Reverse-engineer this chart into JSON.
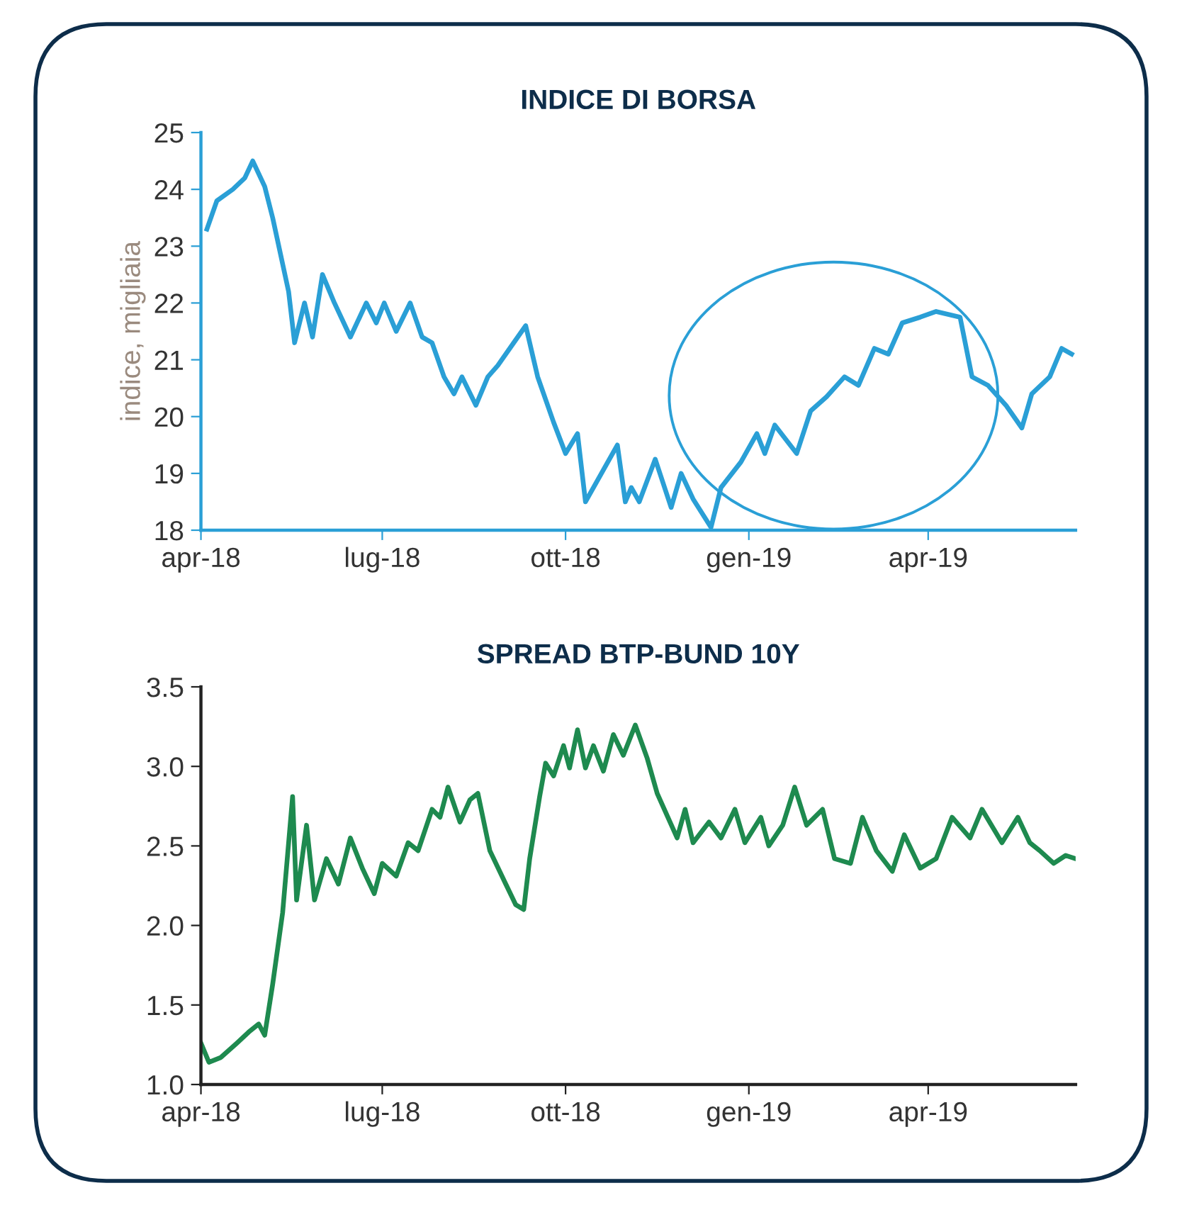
{
  "chart_data": [
    {
      "type": "line",
      "title": "INDICE DI BORSA",
      "ylabel": "indice, migliaia",
      "x": [
        "2018-04-04",
        "2018-04-09",
        "2018-04-17",
        "2018-04-23",
        "2018-04-27",
        "2018-05-03",
        "2018-05-07",
        "2018-05-15",
        "2018-05-18",
        "2018-05-23",
        "2018-05-27",
        "2018-06-01",
        "2018-06-07",
        "2018-06-15",
        "2018-06-23",
        "2018-06-28",
        "2018-07-02",
        "2018-07-08",
        "2018-07-15",
        "2018-07-21",
        "2018-07-26",
        "2018-08-01",
        "2018-08-06",
        "2018-08-10",
        "2018-08-17",
        "2018-08-23",
        "2018-08-28",
        "2018-09-05",
        "2018-09-11",
        "2018-09-17",
        "2018-09-25",
        "2018-10-01",
        "2018-10-07",
        "2018-10-11",
        "2018-10-19",
        "2018-10-27",
        "2018-10-31",
        "2018-11-03",
        "2018-11-07",
        "2018-11-15",
        "2018-11-23",
        "2018-11-28",
        "2018-12-04",
        "2018-12-13",
        "2018-12-18",
        "2018-12-28",
        "2019-01-05",
        "2019-01-09",
        "2019-01-14",
        "2019-01-25",
        "2019-02-01",
        "2019-02-09",
        "2019-02-18",
        "2019-02-25",
        "2019-03-05",
        "2019-03-12",
        "2019-03-19",
        "2019-03-28",
        "2019-04-05",
        "2019-04-17",
        "2019-04-23",
        "2019-05-01",
        "2019-05-10",
        "2019-05-18",
        "2019-05-23",
        "2019-06-01",
        "2019-06-07",
        "2019-06-12"
      ],
      "series": [
        {
          "color": "#2a9fd6",
          "values": [
            23.3,
            23.8,
            24.0,
            24.2,
            24.5,
            24.05,
            23.5,
            22.2,
            21.3,
            22.0,
            21.4,
            22.5,
            22.0,
            21.4,
            22.0,
            21.65,
            22.0,
            21.5,
            22.0,
            21.4,
            21.3,
            20.7,
            20.4,
            20.7,
            20.2,
            20.7,
            20.9,
            21.3,
            21.6,
            20.7,
            19.9,
            19.35,
            19.7,
            18.5,
            19.0,
            19.5,
            18.5,
            18.75,
            18.5,
            19.25,
            18.4,
            19.0,
            18.55,
            18.05,
            18.75,
            19.2,
            19.7,
            19.35,
            19.85,
            19.35,
            20.1,
            20.35,
            20.7,
            20.55,
            21.2,
            21.1,
            21.65,
            21.75,
            21.85,
            21.75,
            20.7,
            20.55,
            20.2,
            19.8,
            20.4,
            20.7,
            21.2,
            21.1
          ]
        }
      ],
      "xlim": [
        "2018-04-01",
        "2019-06-14"
      ],
      "xticks": [
        {
          "value": "2018-04-01",
          "label": "apr-18"
        },
        {
          "value": "2018-07-01",
          "label": "lug-18"
        },
        {
          "value": "2018-10-01",
          "label": "ott-18"
        },
        {
          "value": "2019-01-01",
          "label": "gen-19"
        },
        {
          "value": "2019-04-01",
          "label": "apr-19"
        }
      ],
      "ylim": [
        18,
        25
      ],
      "yticks": [
        18,
        19,
        20,
        21,
        22,
        23,
        24,
        25
      ]
    },
    {
      "type": "line",
      "title": "SPREAD BTP-BUND 10Y",
      "x": [
        "2018-04-01",
        "2018-04-05",
        "2018-04-11",
        "2018-04-19",
        "2018-04-25",
        "2018-04-30",
        "2018-05-03",
        "2018-05-07",
        "2018-05-12",
        "2018-05-17",
        "2018-05-19",
        "2018-05-24",
        "2018-05-28",
        "2018-06-03",
        "2018-06-09",
        "2018-06-15",
        "2018-06-21",
        "2018-06-27",
        "2018-07-01",
        "2018-07-08",
        "2018-07-14",
        "2018-07-19",
        "2018-07-26",
        "2018-07-30",
        "2018-08-03",
        "2018-08-09",
        "2018-08-14",
        "2018-08-18",
        "2018-08-24",
        "2018-09-01",
        "2018-09-06",
        "2018-09-10",
        "2018-09-13",
        "2018-09-18",
        "2018-09-21",
        "2018-09-25",
        "2018-09-30",
        "2018-10-03",
        "2018-10-07",
        "2018-10-11",
        "2018-10-15",
        "2018-10-20",
        "2018-10-25",
        "2018-10-30",
        "2018-11-05",
        "2018-11-11",
        "2018-11-16",
        "2018-11-26",
        "2018-11-30",
        "2018-12-04",
        "2018-12-12",
        "2018-12-18",
        "2018-12-25",
        "2018-12-30",
        "2019-01-07",
        "2019-01-11",
        "2019-01-18",
        "2019-01-24",
        "2019-01-30",
        "2019-02-07",
        "2019-02-13",
        "2019-02-21",
        "2019-02-27",
        "2019-03-06",
        "2019-03-14",
        "2019-03-20",
        "2019-03-28",
        "2019-04-05",
        "2019-04-13",
        "2019-04-22",
        "2019-04-28",
        "2019-05-08",
        "2019-05-16",
        "2019-05-22",
        "2019-05-27",
        "2019-06-03",
        "2019-06-09",
        "2019-06-14"
      ],
      "series": [
        {
          "color": "#1e8a4f",
          "values": [
            1.26,
            1.14,
            1.17,
            1.26,
            1.33,
            1.38,
            1.31,
            1.63,
            2.08,
            2.81,
            2.16,
            2.63,
            2.16,
            2.42,
            2.26,
            2.55,
            2.36,
            2.2,
            2.39,
            2.31,
            2.52,
            2.47,
            2.73,
            2.68,
            2.87,
            2.65,
            2.79,
            2.83,
            2.47,
            2.26,
            2.13,
            2.1,
            2.42,
            2.81,
            3.02,
            2.94,
            3.13,
            2.99,
            3.23,
            2.99,
            3.13,
            2.97,
            3.2,
            3.07,
            3.26,
            3.05,
            2.83,
            2.55,
            2.73,
            2.52,
            2.65,
            2.55,
            2.73,
            2.52,
            2.68,
            2.5,
            2.63,
            2.87,
            2.63,
            2.73,
            2.42,
            2.39,
            2.68,
            2.47,
            2.34,
            2.57,
            2.36,
            2.42,
            2.68,
            2.55,
            2.73,
            2.52,
            2.68,
            2.52,
            2.47,
            2.39,
            2.44,
            2.42
          ]
        }
      ],
      "xlim": [
        "2018-04-01",
        "2019-06-14"
      ],
      "xticks": [
        {
          "value": "2018-04-01",
          "label": "apr-18"
        },
        {
          "value": "2018-07-01",
          "label": "lug-18"
        },
        {
          "value": "2018-10-01",
          "label": "ott-18"
        },
        {
          "value": "2019-01-01",
          "label": "gen-19"
        },
        {
          "value": "2019-04-01",
          "label": "apr-19"
        }
      ],
      "ylim": [
        1.0,
        3.5
      ],
      "yticks": [
        {
          "value": 1.0,
          "label": "1.0"
        },
        1.5,
        {
          "value": 2.0,
          "label": "2.0"
        },
        2.5,
        {
          "value": 3.0,
          "label": "3.0"
        },
        3.5
      ]
    }
  ]
}
